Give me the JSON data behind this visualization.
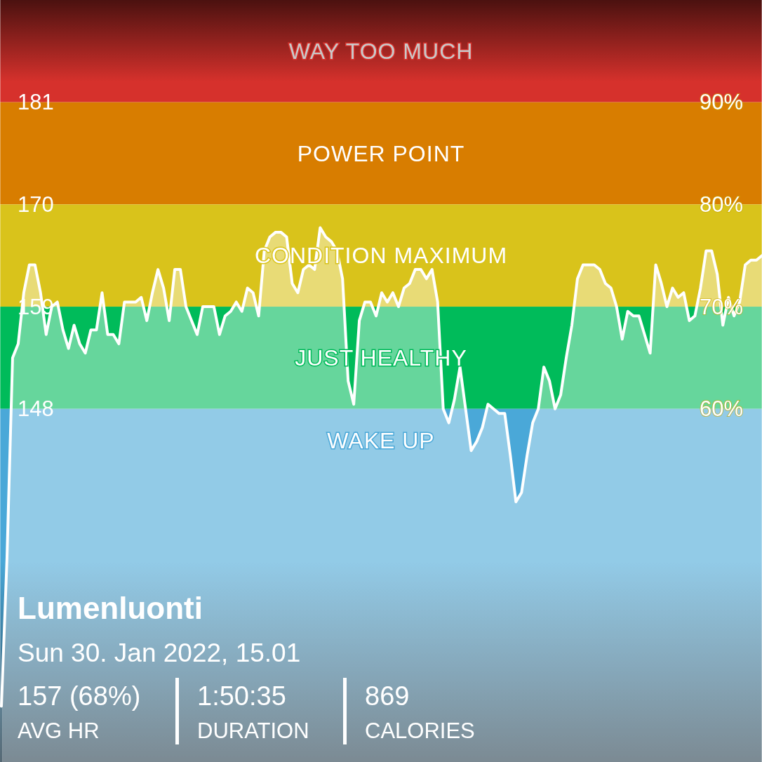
{
  "chart_data": {
    "type": "area",
    "title": "Lumenluonti",
    "subtitle": "Sun 30. Jan 2022, 15.01",
    "annotations": [
      "157 (68%)",
      "AVG HR",
      "1:50:35",
      "DURATION",
      "869",
      "CALORIES"
    ],
    "categories": [
      null,
      null,
      null,
      null,
      null,
      null,
      null,
      null,
      null,
      null,
      null,
      null,
      null,
      null,
      null,
      null,
      null,
      null,
      null,
      null,
      null,
      null,
      null,
      null,
      null,
      null,
      null,
      null,
      null,
      null,
      null,
      null,
      null,
      null,
      null,
      null,
      null,
      null,
      null,
      null,
      null,
      null,
      null,
      null,
      null,
      null,
      null,
      null,
      null,
      null,
      null,
      null,
      null,
      null,
      null,
      null,
      null,
      null,
      null,
      null,
      null,
      null,
      null,
      null,
      null,
      null,
      null,
      null,
      null,
      null,
      null,
      null,
      null,
      null,
      null,
      null,
      null,
      null,
      null,
      null,
      null,
      null,
      null,
      null,
      null,
      null,
      null,
      null,
      null,
      null,
      null,
      null,
      null,
      null,
      null,
      null,
      null,
      null,
      null,
      null,
      null,
      null,
      null,
      null,
      null,
      null,
      null,
      null,
      null,
      null,
      null,
      null,
      null,
      null,
      null,
      null,
      null,
      null,
      null,
      null,
      null,
      null,
      null,
      null,
      null,
      null,
      null,
      null,
      null,
      null,
      null,
      null,
      null,
      null,
      null,
      null,
      null
    ],
    "ylim": [
      110,
      192
    ],
    "yticks": [
      148,
      159,
      170,
      181
    ],
    "y2lim": [
      25.45,
      100
    ],
    "y2ticks": [
      {
        "value": 60,
        "label": "60%"
      },
      {
        "value": 70,
        "label": "70%"
      },
      {
        "value": 80,
        "label": "80%"
      },
      {
        "value": 90,
        "label": "90%"
      }
    ],
    "tick_labels": "y",
    "grid": false,
    "bands": [
      {
        "axis": "y",
        "from": 181,
        "to": 192,
        "label": "WAY TOO MUCH",
        "color": "#d6312c"
      },
      {
        "axis": "y",
        "from": 170,
        "to": 181,
        "label": "POWER POINT",
        "color": "#d87d00"
      },
      {
        "axis": "y",
        "from": 159,
        "to": 170,
        "label": "CONDITION MAXIMUM",
        "color": "#d9c31b"
      },
      {
        "axis": "y",
        "from": 148,
        "to": 159,
        "label": "JUST HEALTHY",
        "color": "#00bb5a"
      },
      {
        "axis": "y",
        "from": 110,
        "to": 148,
        "label": "WAKE UP",
        "color": "#4aa8d8"
      }
    ],
    "series": [
      {
        "color": "#ffffff",
        "values": [
          116,
          132,
          153.5,
          155,
          160.5,
          163.5,
          163.5,
          160.5,
          156,
          159,
          159.5,
          156.5,
          154.5,
          157,
          155,
          154,
          156.5,
          156.5,
          160.5,
          156,
          156,
          155,
          159.5,
          159.5,
          159.5,
          160,
          157.5,
          160.5,
          163,
          161,
          157.5,
          163,
          163,
          159,
          157.5,
          156,
          159,
          159,
          159,
          156,
          158,
          158.5,
          159.5,
          158.5,
          161,
          160.5,
          158,
          165,
          166.5,
          167,
          167,
          166.5,
          161.5,
          160.5,
          163,
          163.5,
          163,
          167.5,
          166.5,
          166,
          165,
          162,
          151,
          148.5,
          157.5,
          159.5,
          159.5,
          158,
          160.5,
          159.5,
          160.5,
          159,
          161,
          161.5,
          163,
          163,
          162,
          163,
          159.5,
          148,
          146.5,
          149,
          152.5,
          148,
          143.5,
          144.5,
          146,
          148.5,
          148,
          147.5,
          147.5,
          143,
          138,
          139,
          143,
          146.5,
          148,
          152.5,
          151,
          148,
          149.5,
          153.5,
          157,
          162,
          163.5,
          163.5,
          163.5,
          163,
          161.5,
          161,
          159,
          155.5,
          158.5,
          158,
          158,
          156,
          154,
          163.5,
          161.5,
          159,
          161,
          160,
          160.5,
          157.5,
          158,
          161,
          165,
          165,
          162.5,
          157,
          160,
          158,
          159.5,
          163.5,
          164,
          164,
          164.5
        ]
      }
    ]
  }
}
